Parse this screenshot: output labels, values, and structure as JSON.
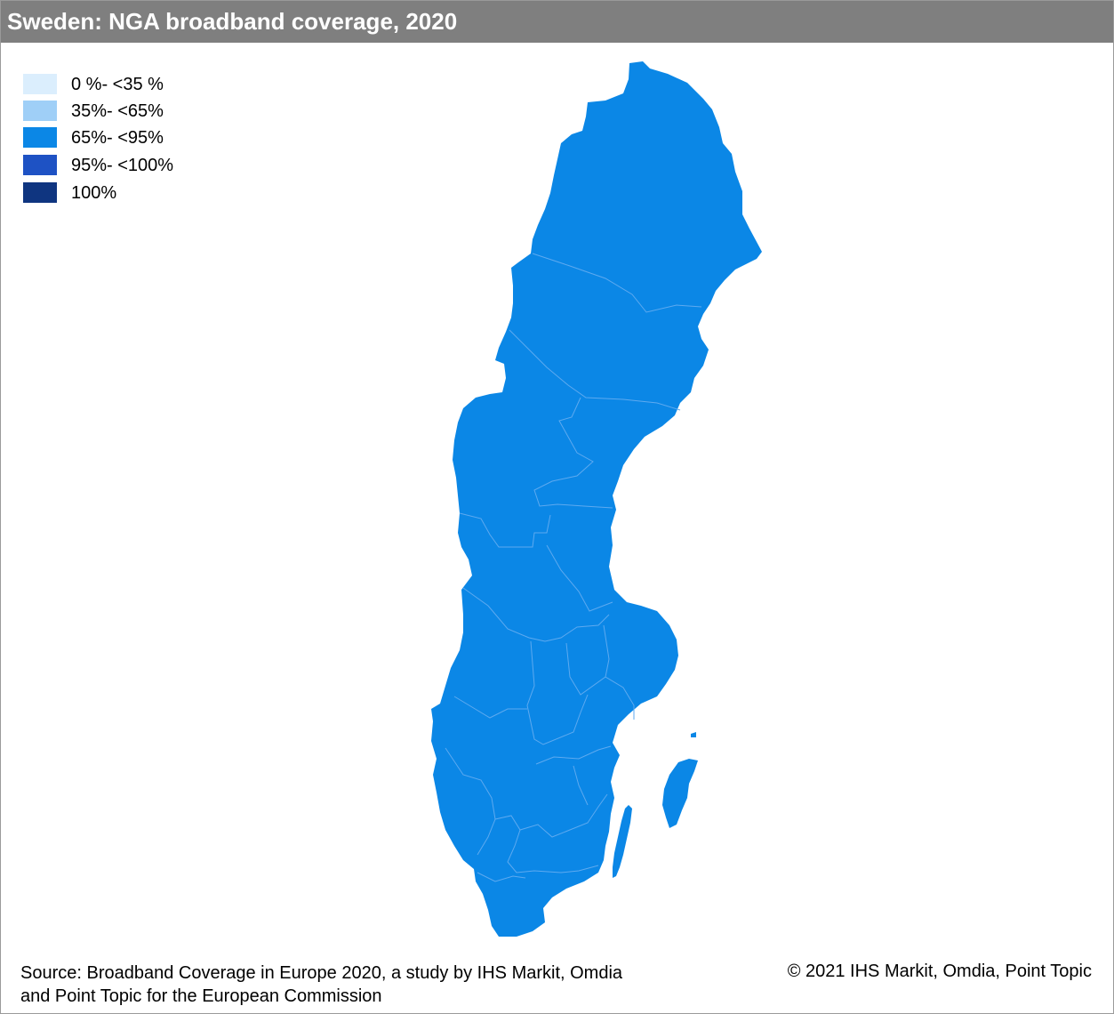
{
  "title": "Sweden: NGA broadband coverage, 2020",
  "legend": [
    {
      "label": " 0 %- <35 %",
      "color": "#dbeefd"
    },
    {
      "label": "35%- <65%",
      "color": "#9fcff7"
    },
    {
      "label": "65%- <95%",
      "color": "#0b87e6"
    },
    {
      "label": "95%- <100%",
      "color": "#1e52c4"
    },
    {
      "label": "100%",
      "color": "#0f3580"
    }
  ],
  "map": {
    "country": "Sweden",
    "fill_color": "#0b87e6",
    "coverage_class": "65%- <95%",
    "border_color": "#5eaaf0"
  },
  "footer": {
    "source_line1": "Source: Broadband Coverage in Europe 2020, a study by IHS Markit, Omdia",
    "source_line2": "and Point Topic for the European Commission",
    "copyright": "© 2021 IHS Markit, Omdia, Point Topic"
  },
  "colors": {
    "title_bar": "#7f7f7f",
    "title_text": "#ffffff",
    "frame_border": "#9a9a9a"
  }
}
